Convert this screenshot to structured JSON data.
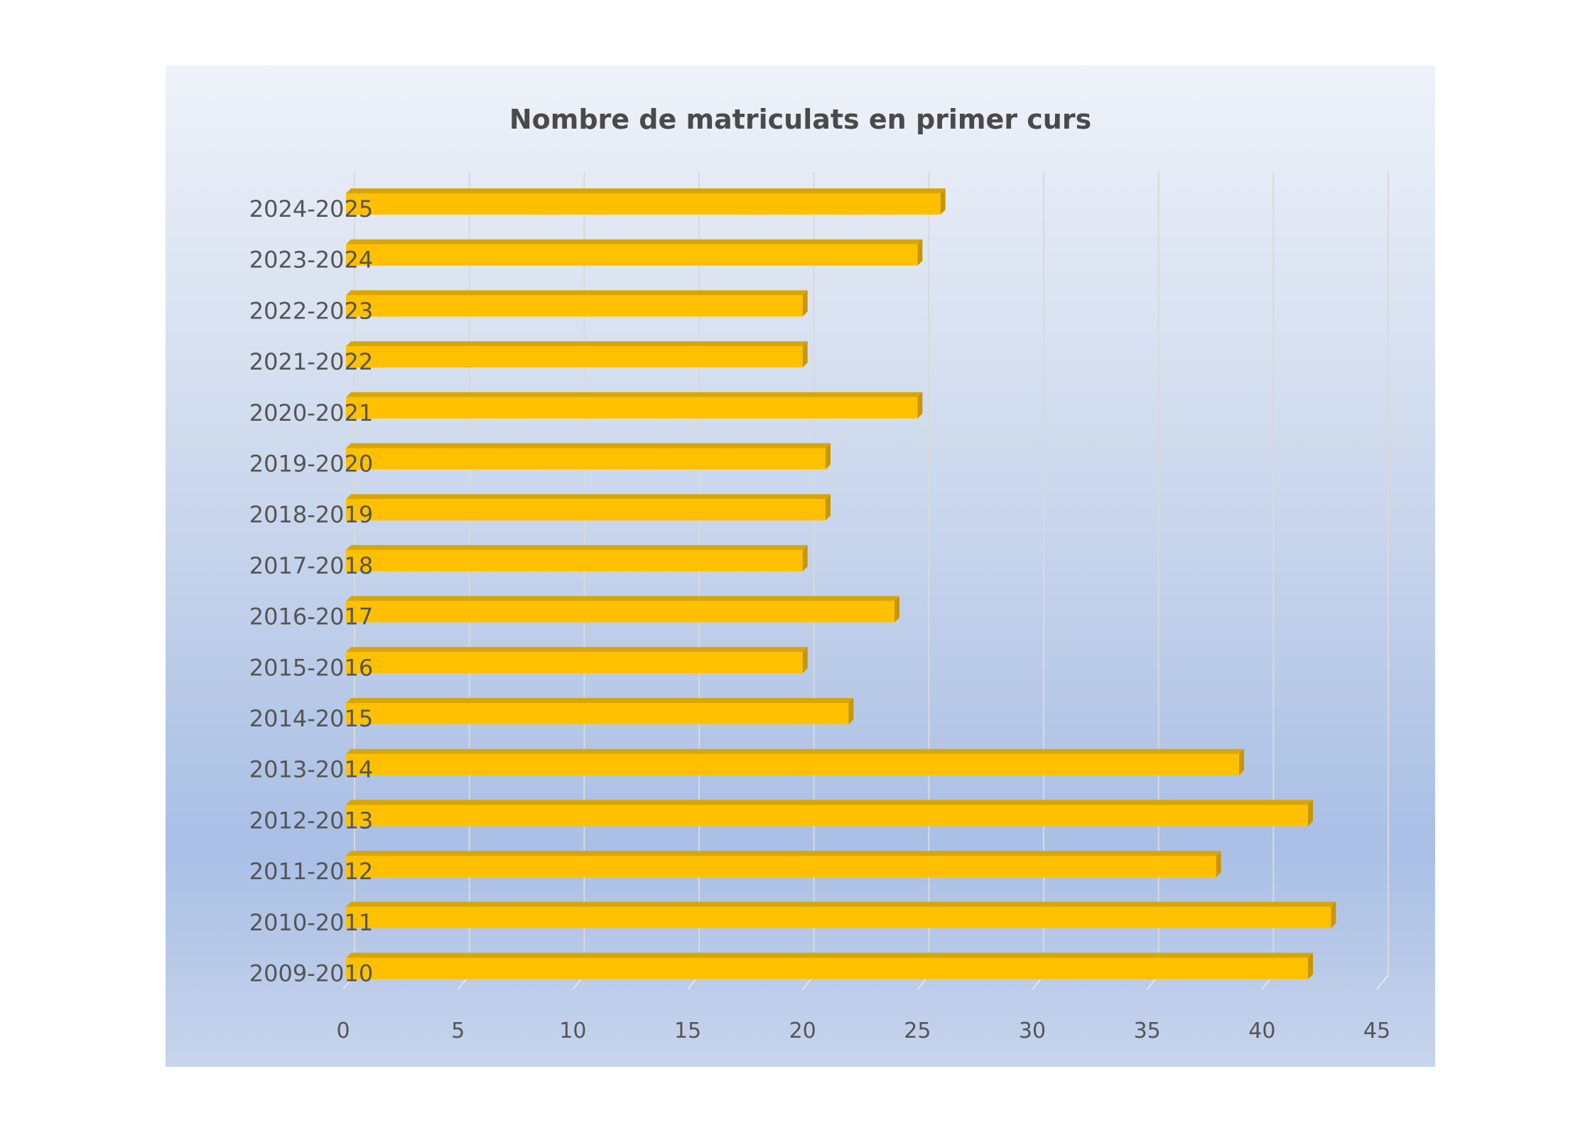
{
  "chart_data": {
    "type": "bar",
    "orientation": "horizontal",
    "title": "Nombre de matriculats en primer curs",
    "xlabel": "",
    "ylabel": "",
    "categories": [
      "2024-2025",
      "2023-2024",
      "2022-2023",
      "2021-2022",
      "2020-2021",
      "2019-2020",
      "2018-2019",
      "2017-2018",
      "2016-2017",
      "2015-2016",
      "2014-2015",
      "2013-2014",
      "2012-2013",
      "2011-2012",
      "2010-2011",
      "2009-2010"
    ],
    "values": [
      26,
      25,
      20,
      20,
      25,
      21,
      21,
      20,
      24,
      20,
      22,
      39,
      42,
      38,
      43,
      42
    ],
    "xlim": [
      0,
      45
    ],
    "xticks": [
      "0",
      "5",
      "10",
      "15",
      "20",
      "25",
      "30",
      "35",
      "40",
      "45"
    ],
    "grid": true,
    "bar_color": "#ffc000",
    "bar_shade_color": "#c89600",
    "legend": "none"
  }
}
